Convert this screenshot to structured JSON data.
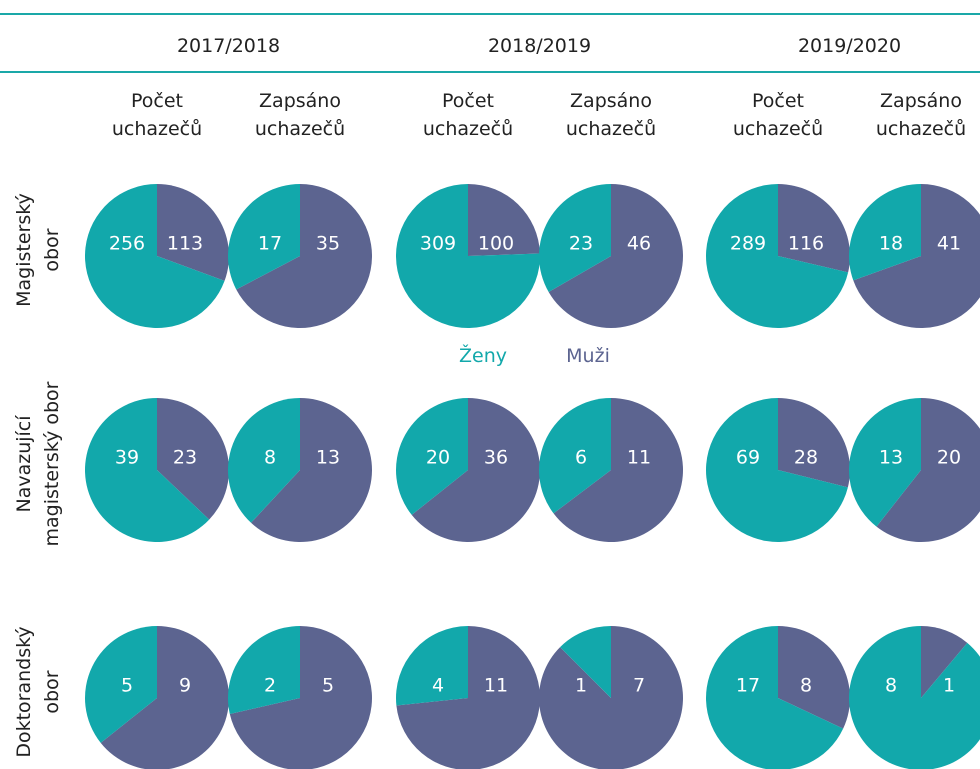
{
  "chart_data": {
    "type": "pie",
    "years": [
      "2017/2018",
      "2018/2019",
      "2019/2020"
    ],
    "measures": [
      [
        "Počet",
        "uchazečů"
      ],
      [
        "Zapsáno",
        "uchazečů"
      ]
    ],
    "rows": [
      [
        "Magisterský",
        "obor"
      ],
      [
        "Navazující",
        "magisterský obor"
      ],
      [
        "Doktorandský",
        "obor"
      ]
    ],
    "series": [
      {
        "name": "Ženy",
        "color": "#12a8ab",
        "values": [
          [
            256,
            17,
            309,
            23,
            289,
            18
          ],
          [
            39,
            8,
            20,
            6,
            69,
            13
          ],
          [
            5,
            2,
            4,
            1,
            17,
            8
          ]
        ]
      },
      {
        "name": "Muži",
        "color": "#5c6490",
        "values": [
          [
            113,
            35,
            100,
            46,
            116,
            41
          ],
          [
            23,
            13,
            36,
            11,
            28,
            20
          ],
          [
            9,
            5,
            11,
            7,
            8,
            1
          ]
        ]
      }
    ]
  }
}
